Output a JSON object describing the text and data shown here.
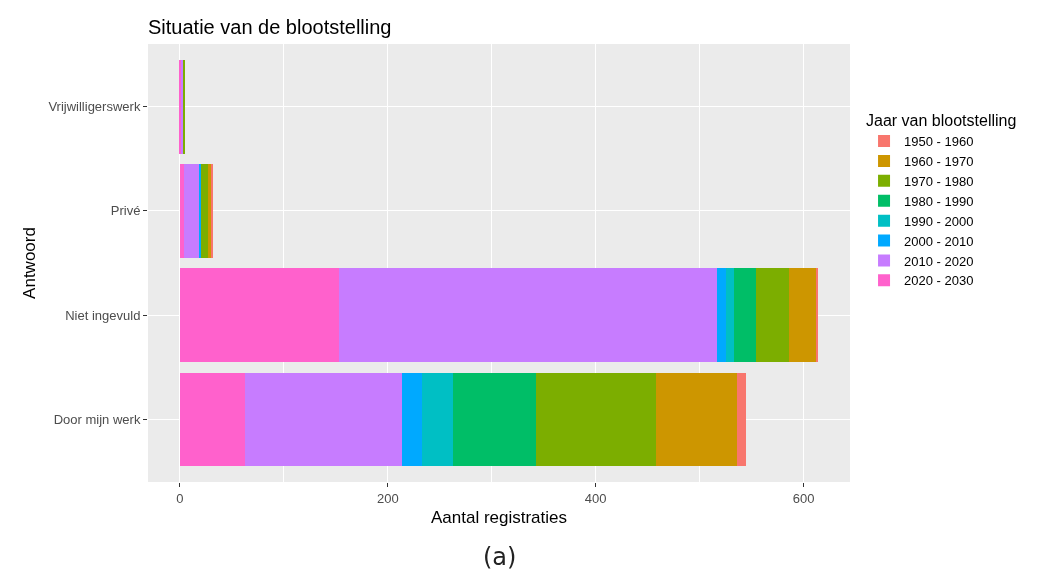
{
  "chart_data": {
    "type": "bar",
    "orientation": "horizontal",
    "stacked": true,
    "title": "Situatie van de blootstelling",
    "xlabel": "Aantal registraties",
    "ylabel": "Antwoord",
    "legend_title": "Jaar van blootstelling",
    "legend": "right",
    "grid": true,
    "categories": [
      "Vrijwilligerswerk",
      "Privé",
      "Niet ingevuld",
      "Door mijn werk"
    ],
    "series": [
      {
        "name": "2020 - 2030",
        "color": "#ff61cc",
        "values": [
          1,
          4,
          153,
          63
        ]
      },
      {
        "name": "2010 - 2020",
        "color": "#c77cff",
        "values": [
          2,
          14,
          364,
          151
        ]
      },
      {
        "name": "2000 - 2010",
        "color": "#00a9ff",
        "values": [
          0,
          2,
          8,
          19
        ]
      },
      {
        "name": "1990 - 2000",
        "color": "#00bfc4",
        "values": [
          0,
          0,
          8,
          30
        ]
      },
      {
        "name": "1980 - 1990",
        "color": "#00be67",
        "values": [
          0,
          0,
          21,
          80
        ]
      },
      {
        "name": "1970 - 1980",
        "color": "#7cae00",
        "values": [
          2,
          7,
          32,
          115
        ]
      },
      {
        "name": "1960 - 1970",
        "color": "#cd9600",
        "values": [
          0,
          3,
          26,
          78
        ]
      },
      {
        "name": "1950 - 1960",
        "color": "#f8766d",
        "values": [
          0,
          2,
          2,
          9
        ]
      }
    ],
    "xlim": [
      -30.7,
      644.7
    ],
    "xticks": [
      0,
      200,
      400,
      600
    ],
    "annotations": [
      "(a)"
    ]
  }
}
